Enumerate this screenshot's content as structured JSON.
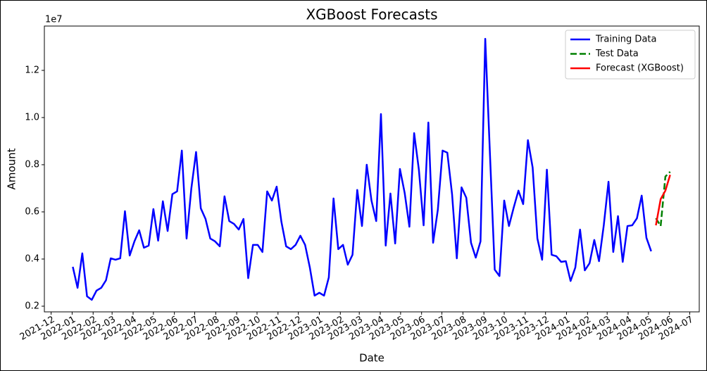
{
  "chart_data": {
    "type": "line",
    "title": "XGBoost Forecasts",
    "xlabel": "Date",
    "ylabel": "Amount",
    "y_offset_text": "1e7",
    "xlim": [
      "2021-11-21",
      "2024-07-15"
    ],
    "xticks": [
      {
        "value": "2021-12-01",
        "label": "2021-12"
      },
      {
        "value": "2022-01-01",
        "label": "2022-01"
      },
      {
        "value": "2022-02-01",
        "label": "2022-02"
      },
      {
        "value": "2022-03-01",
        "label": "2022-03"
      },
      {
        "value": "2022-04-01",
        "label": "2022-04"
      },
      {
        "value": "2022-05-01",
        "label": "2022-05"
      },
      {
        "value": "2022-06-01",
        "label": "2022-06"
      },
      {
        "value": "2022-07-01",
        "label": "2022-07"
      },
      {
        "value": "2022-08-01",
        "label": "2022-08"
      },
      {
        "value": "2022-09-01",
        "label": "2022-09"
      },
      {
        "value": "2022-10-01",
        "label": "2022-10"
      },
      {
        "value": "2022-11-01",
        "label": "2022-11"
      },
      {
        "value": "2022-12-01",
        "label": "2022-12"
      },
      {
        "value": "2023-01-01",
        "label": "2023-01"
      },
      {
        "value": "2023-02-01",
        "label": "2023-02"
      },
      {
        "value": "2023-03-01",
        "label": "2023-03"
      },
      {
        "value": "2023-04-01",
        "label": "2023-04"
      },
      {
        "value": "2023-05-01",
        "label": "2023-05"
      },
      {
        "value": "2023-06-01",
        "label": "2023-06"
      },
      {
        "value": "2023-07-01",
        "label": "2023-07"
      },
      {
        "value": "2023-08-01",
        "label": "2023-08"
      },
      {
        "value": "2023-09-01",
        "label": "2023-09"
      },
      {
        "value": "2023-10-01",
        "label": "2023-10"
      },
      {
        "value": "2023-11-01",
        "label": "2023-11"
      },
      {
        "value": "2023-12-01",
        "label": "2023-12"
      },
      {
        "value": "2024-01-01",
        "label": "2024-01"
      },
      {
        "value": "2024-02-01",
        "label": "2024-02"
      },
      {
        "value": "2024-03-01",
        "label": "2024-03"
      },
      {
        "value": "2024-04-01",
        "label": "2024-04"
      },
      {
        "value": "2024-05-01",
        "label": "2024-05"
      },
      {
        "value": "2024-06-01",
        "label": "2024-06"
      },
      {
        "value": "2024-07-01",
        "label": "2024-07"
      }
    ],
    "ylim": [
      0.176,
      1.388
    ],
    "yticks": [
      0.2,
      0.4,
      0.6,
      0.8,
      {
        "value": 1,
        "label": "1.0"
      },
      1.2
    ],
    "grid": false,
    "legend": "upper right",
    "series": [
      {
        "name": "Training Data",
        "color": "#0000ff",
        "dash": "solid",
        "x": [
          "2022-01-02",
          "2022-01-09",
          "2022-01-16",
          "2022-01-23",
          "2022-01-30",
          "2022-02-06",
          "2022-02-13",
          "2022-02-20",
          "2022-02-27",
          "2022-03-06",
          "2022-03-13",
          "2022-03-20",
          "2022-03-27",
          "2022-04-03",
          "2022-04-10",
          "2022-04-17",
          "2022-04-24",
          "2022-05-01",
          "2022-05-08",
          "2022-05-15",
          "2022-05-22",
          "2022-05-29",
          "2022-06-05",
          "2022-06-12",
          "2022-06-19",
          "2022-06-26",
          "2022-07-03",
          "2022-07-10",
          "2022-07-17",
          "2022-07-24",
          "2022-07-31",
          "2022-08-07",
          "2022-08-14",
          "2022-08-21",
          "2022-08-28",
          "2022-09-04",
          "2022-09-11",
          "2022-09-18",
          "2022-09-25",
          "2022-10-02",
          "2022-10-09",
          "2022-10-16",
          "2022-10-23",
          "2022-10-30",
          "2022-11-06",
          "2022-11-13",
          "2022-11-20",
          "2022-11-27",
          "2022-12-04",
          "2022-12-11",
          "2022-12-18",
          "2022-12-25",
          "2023-01-01",
          "2023-01-08",
          "2023-01-15",
          "2023-01-22",
          "2023-01-29",
          "2023-02-05",
          "2023-02-12",
          "2023-02-19",
          "2023-02-26",
          "2023-03-05",
          "2023-03-12",
          "2023-03-19",
          "2023-03-26",
          "2023-04-02",
          "2023-04-09",
          "2023-04-16",
          "2023-04-23",
          "2023-04-30",
          "2023-05-07",
          "2023-05-14",
          "2023-05-21",
          "2023-05-28",
          "2023-06-04",
          "2023-06-11",
          "2023-06-18",
          "2023-06-25",
          "2023-07-02",
          "2023-07-09",
          "2023-07-16",
          "2023-07-23",
          "2023-07-30",
          "2023-08-06",
          "2023-08-13",
          "2023-08-20",
          "2023-08-27",
          "2023-09-03",
          "2023-09-10",
          "2023-09-17",
          "2023-09-24",
          "2023-10-01",
          "2023-10-08",
          "2023-10-15",
          "2023-10-22",
          "2023-10-29",
          "2023-11-05",
          "2023-11-12",
          "2023-11-19",
          "2023-11-26",
          "2023-12-03",
          "2023-12-10",
          "2023-12-17",
          "2023-12-24",
          "2023-12-31",
          "2024-01-07",
          "2024-01-14",
          "2024-01-21",
          "2024-01-28",
          "2024-02-04",
          "2024-02-11",
          "2024-02-18",
          "2024-02-25",
          "2024-03-03",
          "2024-03-10",
          "2024-03-17",
          "2024-03-24",
          "2024-03-31",
          "2024-04-07",
          "2024-04-14",
          "2024-04-21",
          "2024-04-28",
          "2024-05-05"
        ],
        "values": [
          0.367,
          0.278,
          0.424,
          0.242,
          0.227,
          0.266,
          0.278,
          0.31,
          0.403,
          0.397,
          0.403,
          0.603,
          0.415,
          0.475,
          0.522,
          0.448,
          0.457,
          0.612,
          0.478,
          0.645,
          0.519,
          0.675,
          0.687,
          0.86,
          0.487,
          0.699,
          0.854,
          0.615,
          0.57,
          0.487,
          0.475,
          0.454,
          0.666,
          0.561,
          0.549,
          0.525,
          0.57,
          0.319,
          0.46,
          0.46,
          0.43,
          0.687,
          0.648,
          0.707,
          0.558,
          0.454,
          0.442,
          0.46,
          0.499,
          0.46,
          0.364,
          0.245,
          0.257,
          0.245,
          0.322,
          0.657,
          0.442,
          0.46,
          0.376,
          0.418,
          0.693,
          0.54,
          0.8,
          0.648,
          0.561,
          1.015,
          0.457,
          0.678,
          0.466,
          0.782,
          0.681,
          0.537,
          0.934,
          0.779,
          0.543,
          0.979,
          0.469,
          0.609,
          0.86,
          0.851,
          0.675,
          0.403,
          0.704,
          0.66,
          0.469,
          0.406,
          0.475,
          1.334,
          0.842,
          0.355,
          0.328,
          0.648,
          0.54,
          0.618,
          0.69,
          0.633,
          0.904,
          0.788,
          0.487,
          0.397,
          0.779,
          0.418,
          0.412,
          0.388,
          0.391,
          0.307,
          0.364,
          0.525,
          0.352,
          0.382,
          0.481,
          0.391,
          0.543,
          0.728,
          0.43,
          0.582,
          0.388,
          0.54,
          0.543,
          0.573,
          0.669,
          0.49,
          0.433
        ]
      },
      {
        "name": "Test Data",
        "color": "#008000",
        "dash": "dashed",
        "x": [
          "2024-05-12",
          "2024-05-19",
          "2024-05-26",
          "2024-06-02"
        ],
        "values": [
          0.573,
          0.54,
          0.75,
          0.77
        ]
      },
      {
        "name": "Forecast (XGBoost)",
        "color": "#ff0000",
        "dash": "solid",
        "x": [
          "2024-05-12",
          "2024-05-19",
          "2024-05-26",
          "2024-06-02"
        ],
        "values": [
          0.543,
          0.654,
          0.69,
          0.757
        ]
      }
    ]
  }
}
